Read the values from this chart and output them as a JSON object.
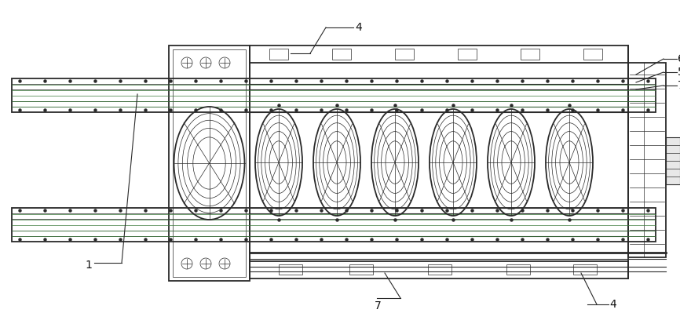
{
  "bg_color": "#ffffff",
  "line_color": "#2a2a2a",
  "label_color": "#111111",
  "fig_width": 8.66,
  "fig_height": 4.13,
  "dpi": 100
}
